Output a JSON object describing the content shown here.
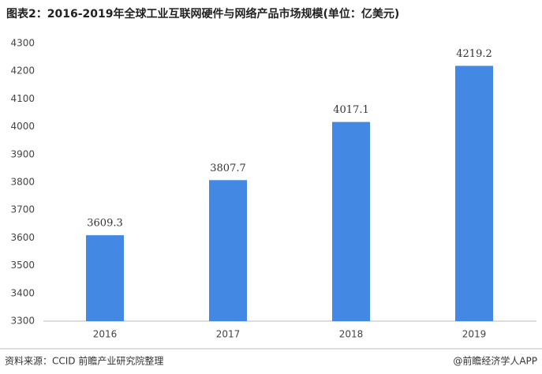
{
  "chart_data": {
    "type": "bar",
    "title": "图表2：2016-2019年全球工业互联网硬件与网络产品市场规模(单位：亿美元)",
    "categories": [
      "2016",
      "2017",
      "2018",
      "2019"
    ],
    "values": [
      3609.3,
      3807.7,
      4017.1,
      4219.2
    ],
    "color": "#4388e3",
    "ylim": [
      3300,
      4300
    ],
    "yticks": [
      3300,
      3400,
      3500,
      3600,
      3700,
      3800,
      3900,
      4000,
      4100,
      4200,
      4300
    ],
    "grid": false,
    "source": "资料来源：CCID 前瞻产业研究院整理",
    "credit": "@前瞻经济学人APP"
  }
}
